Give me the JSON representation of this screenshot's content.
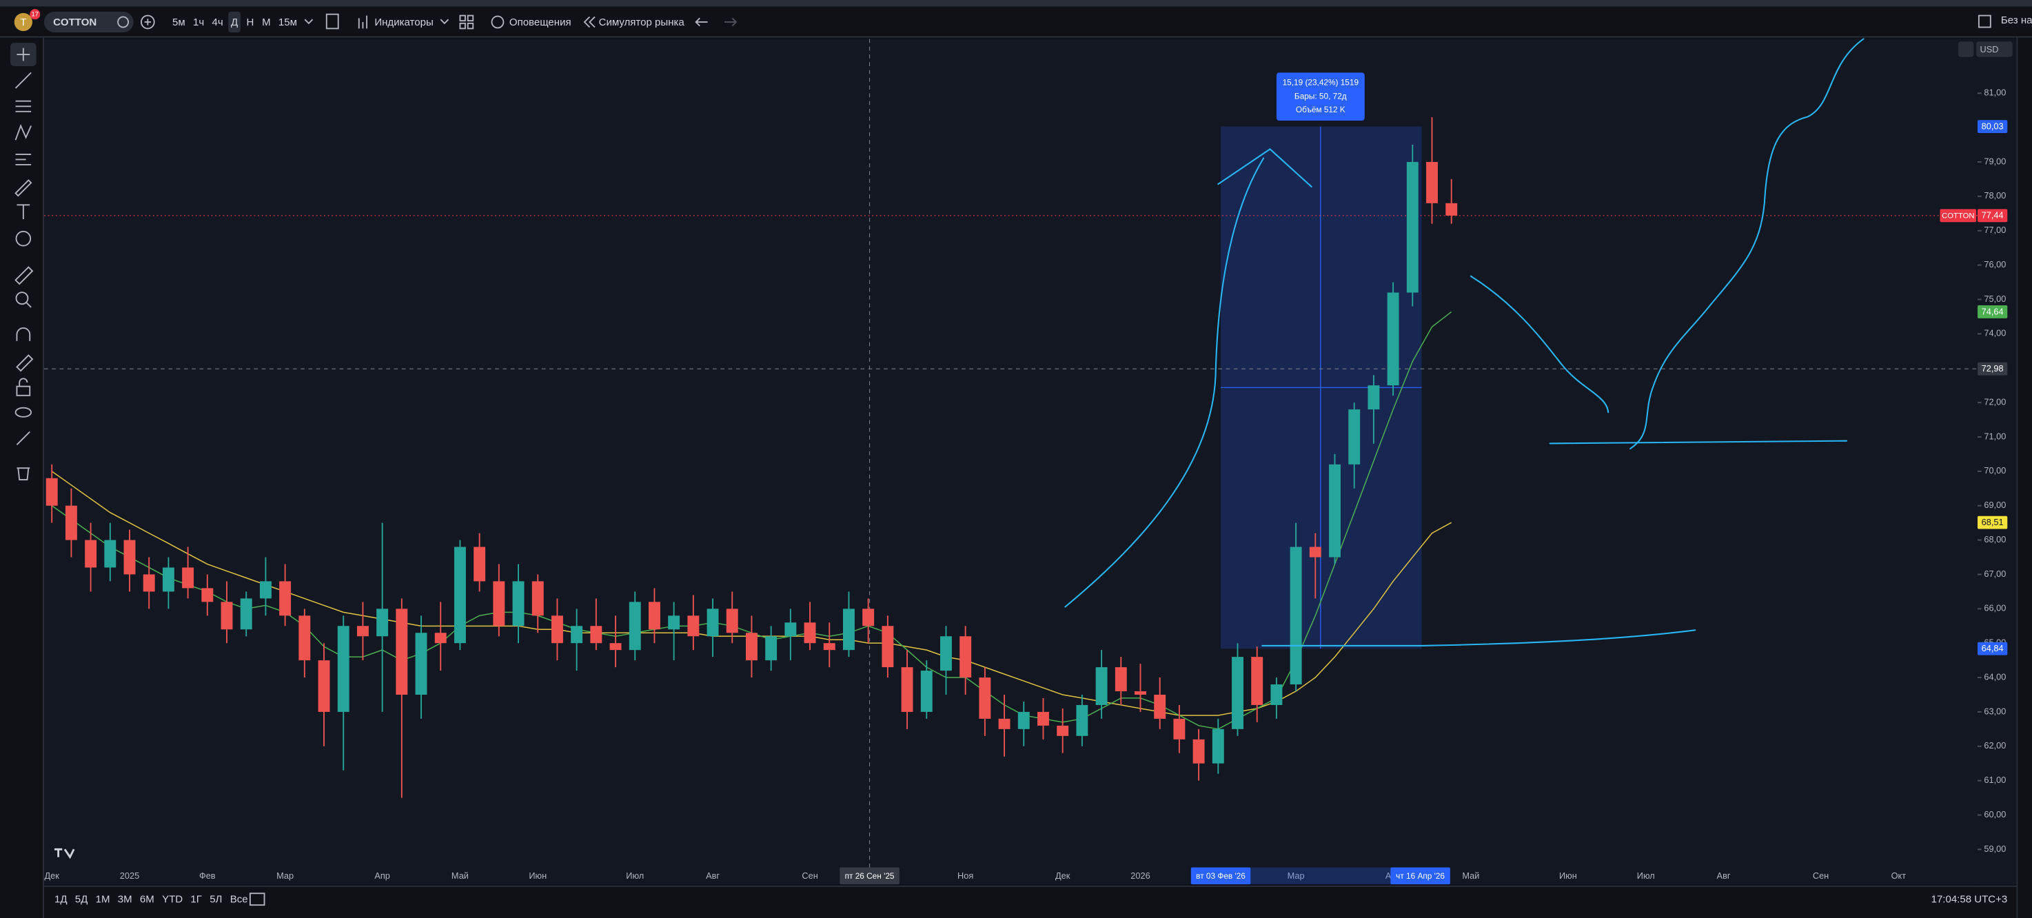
{
  "toolbar": {
    "avatar": "T",
    "badge": "17",
    "symbol": "COTTON",
    "intervals": [
      "5м",
      "1ч",
      "4ч",
      "Д",
      "Н",
      "М",
      "15м"
    ],
    "indicators": "Индикаторы",
    "alerts": "Оповещения",
    "replay": "Симулятор рынка",
    "layout": "Без на",
    "currency": "USD"
  },
  "bottom_bar": {
    "ranges": [
      "1Д",
      "5Д",
      "1М",
      "3М",
      "6М",
      "YTD",
      "1Г",
      "5Л",
      "Все"
    ],
    "clock": "17:04:58 UTC+3"
  },
  "measure": {
    "lines": [
      "15,19 (23,42%) 1519",
      "Бары: 50, 72д",
      "Объём 512 K"
    ]
  },
  "crosshair": {
    "x_label": "пт 26 Сен '25"
  },
  "range_labels": [
    "вт 03 Фев '26",
    "чт 16 Апр '26"
  ],
  "chart_data": {
    "type": "candlestick",
    "ylim": [
      58.55,
      82.58
    ],
    "grid": false,
    "yticks": [
      {
        "value": 59,
        "label": "59,00"
      },
      {
        "value": 60,
        "label": "60,00"
      },
      {
        "value": 61,
        "label": "61,00"
      },
      {
        "value": 62,
        "label": "62,00"
      },
      {
        "value": 63,
        "label": "63,00"
      },
      {
        "value": 64,
        "label": "64,00"
      },
      {
        "value": 65,
        "label": "65,00"
      },
      {
        "value": 66,
        "label": "66,00"
      },
      {
        "value": 67,
        "label": "67,00"
      },
      {
        "value": 68,
        "label": "68,00"
      },
      {
        "value": 69,
        "label": "69,00"
      },
      {
        "value": 70,
        "label": "70,00"
      },
      {
        "value": 71,
        "label": "71,00"
      },
      {
        "value": 72,
        "label": "72,00"
      },
      {
        "value": 73,
        "label": "73,00"
      },
      {
        "value": 74,
        "label": "74,00"
      },
      {
        "value": 75,
        "label": "75,00"
      },
      {
        "value": 76,
        "label": "76,00"
      },
      {
        "value": 77,
        "label": "77,00"
      },
      {
        "value": 78,
        "label": "78,00"
      },
      {
        "value": 79,
        "label": "79,00"
      },
      {
        "value": 80,
        "label": "80,00"
      },
      {
        "value": 81,
        "label": "81,00"
      }
    ],
    "categories": [
      "Дек",
      null,
      null,
      null,
      "2025",
      null,
      null,
      null,
      "Фев",
      null,
      null,
      null,
      "Мар",
      null,
      null,
      null,
      null,
      "Апр",
      null,
      null,
      null,
      "Май",
      null,
      null,
      null,
      "Июн",
      null,
      null,
      null,
      null,
      "Июл",
      null,
      null,
      null,
      "Авг",
      null,
      null,
      null,
      null,
      "Сен",
      null,
      null,
      null,
      null,
      null,
      null,
      null,
      "Ноя",
      null,
      null,
      null,
      null,
      "Дек",
      null,
      null,
      null,
      "2026",
      null,
      null,
      null,
      null,
      null,
      null,
      null,
      "Мар",
      null,
      null,
      null,
      null,
      "Апр",
      null,
      null,
      null,
      "Май",
      null,
      null,
      null,
      null,
      "Июн",
      null,
      null,
      null,
      "Июл",
      null,
      null,
      null,
      "Авг",
      null,
      null,
      null,
      null,
      "Сен",
      null,
      null,
      null,
      "Окт",
      null
    ],
    "candles": {
      "up_color": "#26a69a",
      "down_color": "#ef5350",
      "ohlc": [
        [
          69.8,
          70.2,
          68.5,
          69.0
        ],
        [
          69.0,
          69.5,
          67.5,
          68.0
        ],
        [
          68.0,
          68.5,
          66.5,
          67.2
        ],
        [
          67.2,
          68.5,
          66.8,
          68.0
        ],
        [
          68.0,
          68.3,
          66.5,
          67.0
        ],
        [
          67.0,
          67.5,
          66.0,
          66.5
        ],
        [
          66.5,
          67.5,
          66.0,
          67.2
        ],
        [
          67.2,
          67.8,
          66.3,
          66.6
        ],
        [
          66.6,
          67.0,
          65.8,
          66.2
        ],
        [
          66.2,
          66.8,
          65.0,
          65.4
        ],
        [
          65.4,
          66.5,
          65.2,
          66.3
        ],
        [
          66.3,
          67.5,
          65.8,
          66.8
        ],
        [
          66.8,
          67.3,
          65.5,
          65.8
        ],
        [
          65.8,
          66.0,
          64.0,
          64.5
        ],
        [
          64.5,
          65.0,
          62.0,
          63.0
        ],
        [
          63.0,
          65.8,
          61.3,
          65.5
        ],
        [
          65.5,
          66.2,
          64.5,
          65.2
        ],
        [
          65.2,
          68.5,
          63.0,
          66.0
        ],
        [
          66.0,
          66.3,
          60.5,
          63.5
        ],
        [
          63.5,
          65.8,
          62.8,
          65.3
        ],
        [
          65.3,
          66.2,
          64.2,
          65.0
        ],
        [
          65.0,
          68.0,
          64.8,
          67.8
        ],
        [
          67.8,
          68.2,
          66.5,
          66.8
        ],
        [
          66.8,
          67.3,
          65.2,
          65.5
        ],
        [
          65.5,
          67.3,
          65.0,
          66.8
        ],
        [
          66.8,
          67.0,
          65.3,
          65.8
        ],
        [
          65.8,
          66.3,
          64.5,
          65.0
        ],
        [
          65.0,
          66.0,
          64.2,
          65.5
        ],
        [
          65.5,
          66.3,
          64.8,
          65.0
        ],
        [
          65.0,
          65.8,
          64.3,
          64.8
        ],
        [
          64.8,
          66.5,
          64.5,
          66.2
        ],
        [
          66.2,
          66.6,
          65.0,
          65.4
        ],
        [
          65.4,
          66.2,
          64.5,
          65.8
        ],
        [
          65.8,
          66.4,
          64.8,
          65.2
        ],
        [
          65.2,
          66.3,
          64.6,
          66.0
        ],
        [
          66.0,
          66.5,
          65.0,
          65.3
        ],
        [
          65.3,
          65.8,
          64.0,
          64.5
        ],
        [
          64.5,
          65.5,
          64.2,
          65.2
        ],
        [
          65.2,
          66.0,
          64.5,
          65.6
        ],
        [
          65.6,
          66.2,
          64.8,
          65.0
        ],
        [
          65.0,
          65.6,
          64.3,
          64.8
        ],
        [
          64.8,
          66.5,
          64.6,
          66.0
        ],
        [
          66.0,
          66.3,
          65.0,
          65.5
        ],
        [
          65.5,
          65.8,
          64.0,
          64.3
        ],
        [
          64.3,
          64.8,
          62.5,
          63.0
        ],
        [
          63.0,
          64.5,
          62.8,
          64.2
        ],
        [
          64.2,
          65.5,
          63.5,
          65.2
        ],
        [
          65.2,
          65.5,
          63.5,
          64.0
        ],
        [
          64.0,
          64.3,
          62.3,
          62.8
        ],
        [
          62.8,
          63.5,
          61.7,
          62.5
        ],
        [
          62.5,
          63.3,
          62.0,
          63.0
        ],
        [
          63.0,
          63.4,
          62.2,
          62.6
        ],
        [
          62.6,
          63.1,
          61.8,
          62.3
        ],
        [
          62.3,
          63.5,
          62.0,
          63.2
        ],
        [
          63.2,
          64.8,
          62.8,
          64.3
        ],
        [
          64.3,
          64.6,
          63.2,
          63.6
        ],
        [
          63.6,
          64.4,
          63.0,
          63.5
        ],
        [
          63.5,
          64.0,
          62.5,
          62.8
        ],
        [
          62.8,
          63.2,
          61.8,
          62.2
        ],
        [
          62.2,
          62.5,
          61.0,
          61.5
        ],
        [
          61.5,
          62.8,
          61.2,
          62.5
        ],
        [
          62.5,
          65.0,
          62.3,
          64.6
        ],
        [
          64.6,
          64.9,
          62.7,
          63.2
        ],
        [
          63.2,
          64.0,
          62.8,
          63.8
        ],
        [
          63.8,
          68.5,
          63.6,
          67.8
        ],
        [
          67.8,
          68.2,
          66.3,
          67.5
        ],
        [
          67.5,
          70.5,
          67.3,
          70.2
        ],
        [
          70.2,
          72.0,
          69.5,
          71.8
        ],
        [
          71.8,
          72.8,
          70.8,
          72.5
        ],
        [
          72.5,
          75.5,
          72.2,
          75.2
        ],
        [
          75.2,
          79.5,
          74.8,
          79.0
        ],
        [
          79.0,
          80.3,
          77.2,
          77.8
        ],
        [
          77.8,
          78.5,
          77.2,
          77.44
        ],
        null,
        null,
        null,
        null,
        null,
        null,
        null,
        null,
        null,
        null,
        null,
        null,
        null,
        null,
        null,
        null,
        null,
        null,
        null,
        null,
        null,
        null,
        null,
        null
      ]
    },
    "series": [
      {
        "color": "#e0c341",
        "values": [
          70,
          69.6,
          69.2,
          68.8,
          68.5,
          68.2,
          67.9,
          67.6,
          67.3,
          67.1,
          66.9,
          66.7,
          66.5,
          66.3,
          66.1,
          65.9,
          65.8,
          65.7,
          65.6,
          65.5,
          65.5,
          65.5,
          65.5,
          65.5,
          65.5,
          65.4,
          65.4,
          65.3,
          65.3,
          65.3,
          65.3,
          65.3,
          65.3,
          65.3,
          65.2,
          65.2,
          65.2,
          65.2,
          65.2,
          65.2,
          65.1,
          65.1,
          65.0,
          65.0,
          64.9,
          64.8,
          64.6,
          64.5,
          64.3,
          64.1,
          63.9,
          63.7,
          63.5,
          63.4,
          63.3,
          63.2,
          63.1,
          63.0,
          62.9,
          62.9,
          62.9,
          63.0,
          63.1,
          63.3,
          63.6,
          64.0,
          64.6,
          65.3,
          66.0,
          66.8,
          67.5,
          68.2,
          68.51,
          null,
          null,
          null,
          null,
          null,
          null,
          null,
          null,
          null,
          null,
          null,
          null,
          null,
          null,
          null,
          null,
          null,
          null,
          null,
          null,
          null,
          null,
          null,
          null
        ]
      },
      {
        "color": "#4caf50",
        "values": [
          69,
          68.6,
          68.2,
          67.8,
          67.5,
          67.2,
          66.9,
          66.7,
          66.5,
          66.2,
          66.0,
          66.1,
          65.9,
          65.5,
          64.9,
          64.6,
          64.6,
          64.8,
          64.5,
          64.7,
          65.0,
          65.5,
          65.8,
          65.9,
          65.9,
          65.8,
          65.6,
          65.4,
          65.3,
          65.2,
          65.3,
          65.4,
          65.5,
          65.5,
          65.6,
          65.5,
          65.3,
          65.1,
          65.2,
          65.3,
          65.2,
          65.3,
          65.5,
          65.3,
          64.8,
          64.3,
          64.0,
          64.0,
          63.6,
          63.2,
          62.9,
          62.8,
          62.7,
          62.8,
          63.1,
          63.4,
          63.4,
          63.2,
          62.9,
          62.6,
          62.5,
          62.8,
          63.1,
          63.4,
          64.5,
          65.8,
          67.3,
          68.8,
          70.3,
          71.8,
          73.2,
          74.2,
          74.64,
          null,
          null,
          null,
          null,
          null,
          null,
          null,
          null,
          null,
          null,
          null,
          null,
          null,
          null,
          null,
          null,
          null,
          null,
          null,
          null,
          null,
          null,
          null,
          null
        ]
      }
    ],
    "price_badges": [
      {
        "value": 80.03,
        "label": "80,03",
        "color": "#2962ff",
        "text_color": "#ffffff"
      },
      {
        "value": 77.44,
        "label": "77,44",
        "color": "#f23645",
        "text_color": "#ffffff",
        "tag": "COTTON"
      },
      {
        "value": 74.64,
        "label": "74,64",
        "color": "#4caf50",
        "text_color": "#ffffff"
      },
      {
        "value": 72.98,
        "label": "72,98",
        "color": "#363a45",
        "text_color": "#ffffff"
      },
      {
        "value": 68.51,
        "label": "68,51",
        "color": "#f5e23a",
        "text_color": "#131722"
      },
      {
        "value": 64.84,
        "label": "64,84",
        "color": "#2962ff",
        "text_color": "#ffffff"
      }
    ]
  }
}
